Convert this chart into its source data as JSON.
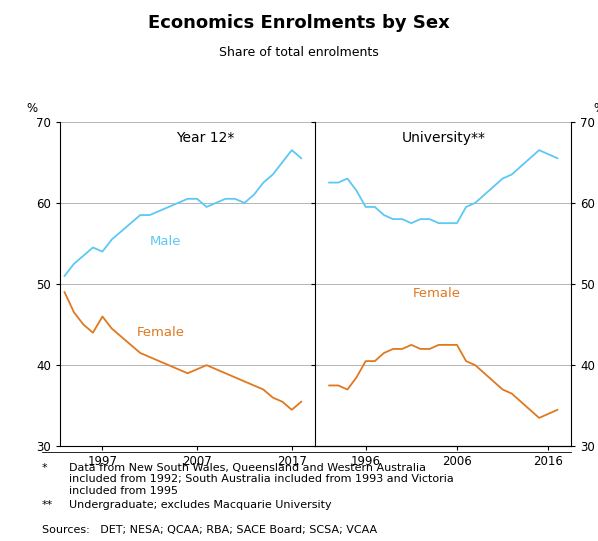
{
  "title": "Economics Enrolments by Sex",
  "subtitle": "Share of total enrolments",
  "left_panel_label": "Year 12*",
  "right_panel_label": "University**",
  "ylabel_left": "%",
  "ylabel_right": "%",
  "ylim": [
    30,
    70
  ],
  "yticks": [
    30,
    40,
    50,
    60,
    70
  ],
  "male_color": "#5BC8F5",
  "female_color": "#E07820",
  "footnote1_marker": "*",
  "footnote1_text": "Data from New South Wales, Queensland and Western Australia\nincluded from 1992; South Australia included from 1993 and Victoria\nincluded from 1995",
  "footnote2_marker": "**",
  "footnote2_text": "Undergraduate; excludes Macquarie University",
  "sources_text": "Sources:   DET; NESA; QCAA; RBA; SACE Board; SCSA; VCAA",
  "yr12_years": [
    1993,
    1994,
    1995,
    1996,
    1997,
    1998,
    1999,
    2000,
    2001,
    2002,
    2003,
    2004,
    2005,
    2006,
    2007,
    2008,
    2009,
    2010,
    2011,
    2012,
    2013,
    2014,
    2015,
    2016,
    2017,
    2018
  ],
  "yr12_male": [
    51.0,
    52.5,
    53.5,
    54.5,
    54.0,
    55.5,
    56.5,
    57.5,
    58.5,
    58.5,
    59.0,
    59.5,
    60.0,
    60.5,
    60.5,
    59.5,
    60.0,
    60.5,
    60.5,
    60.0,
    61.0,
    62.5,
    63.5,
    65.0,
    66.5,
    65.5
  ],
  "yr12_female": [
    49.0,
    46.5,
    45.0,
    44.0,
    46.0,
    44.5,
    43.5,
    42.5,
    41.5,
    41.0,
    40.5,
    40.0,
    39.5,
    39.0,
    39.5,
    40.0,
    39.5,
    39.0,
    38.5,
    38.0,
    37.5,
    37.0,
    36.0,
    35.5,
    34.5,
    35.5
  ],
  "uni_years": [
    1992,
    1993,
    1994,
    1995,
    1996,
    1997,
    1998,
    1999,
    2000,
    2001,
    2002,
    2003,
    2004,
    2005,
    2006,
    2007,
    2008,
    2009,
    2010,
    2011,
    2012,
    2013,
    2014,
    2015,
    2016,
    2017
  ],
  "uni_male": [
    62.5,
    62.5,
    63.0,
    61.5,
    59.5,
    59.5,
    58.5,
    58.0,
    58.0,
    57.5,
    58.0,
    58.0,
    57.5,
    57.5,
    57.5,
    59.5,
    60.0,
    61.0,
    62.0,
    63.0,
    63.5,
    64.5,
    65.5,
    66.5,
    66.0,
    65.5
  ],
  "uni_female": [
    37.5,
    37.5,
    37.0,
    38.5,
    40.5,
    40.5,
    41.5,
    42.0,
    42.0,
    42.5,
    42.0,
    42.0,
    42.5,
    42.5,
    42.5,
    40.5,
    40.0,
    39.0,
    38.0,
    37.0,
    36.5,
    35.5,
    34.5,
    33.5,
    34.0,
    34.5
  ]
}
